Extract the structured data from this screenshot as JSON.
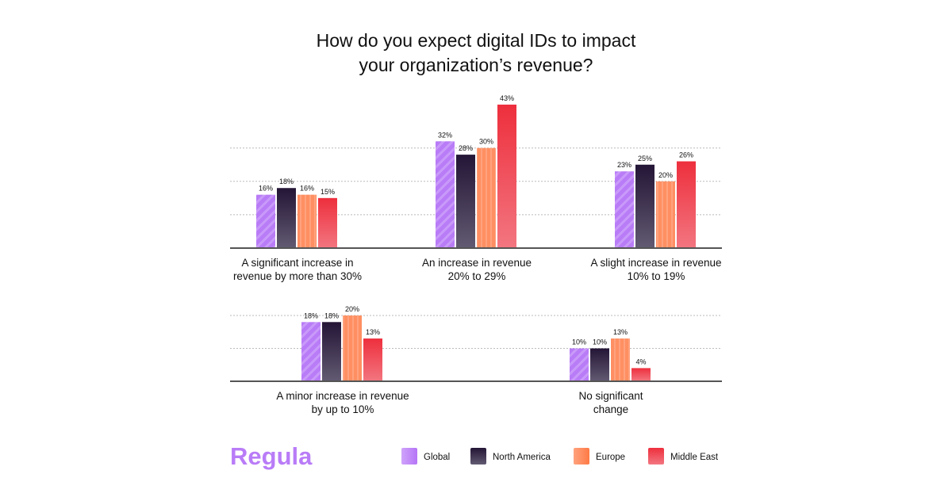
{
  "chart_data": {
    "type": "bar",
    "title": [
      "How do you expect digital IDs to impact",
      "your organization’s revenue?"
    ],
    "categories": [
      [
        "A significant increase in",
        "revenue by more than 30%"
      ],
      [
        "An increase in revenue",
        "20% to 29%"
      ],
      [
        "A slight increase in revenue",
        "10% to 19%"
      ],
      [
        "A minor increase in revenue",
        "by up to 10%"
      ],
      [
        "No significant",
        "change"
      ]
    ],
    "series": [
      {
        "name": "Global",
        "values": [
          16,
          32,
          23,
          18,
          10
        ],
        "color": "#b97cf7"
      },
      {
        "name": "North America",
        "values": [
          18,
          28,
          25,
          18,
          10
        ],
        "color": "#2a1a3a"
      },
      {
        "name": "Europe",
        "values": [
          16,
          30,
          20,
          20,
          13
        ],
        "color": "#ff8a5c"
      },
      {
        "name": "Middle East",
        "values": [
          15,
          43,
          26,
          13,
          4
        ],
        "color": "#ef3340"
      }
    ],
    "value_suffix": "%",
    "grid": true,
    "legend": "bottom-right"
  },
  "brand": {
    "logo": "Regula",
    "color": "#b97cf7"
  }
}
